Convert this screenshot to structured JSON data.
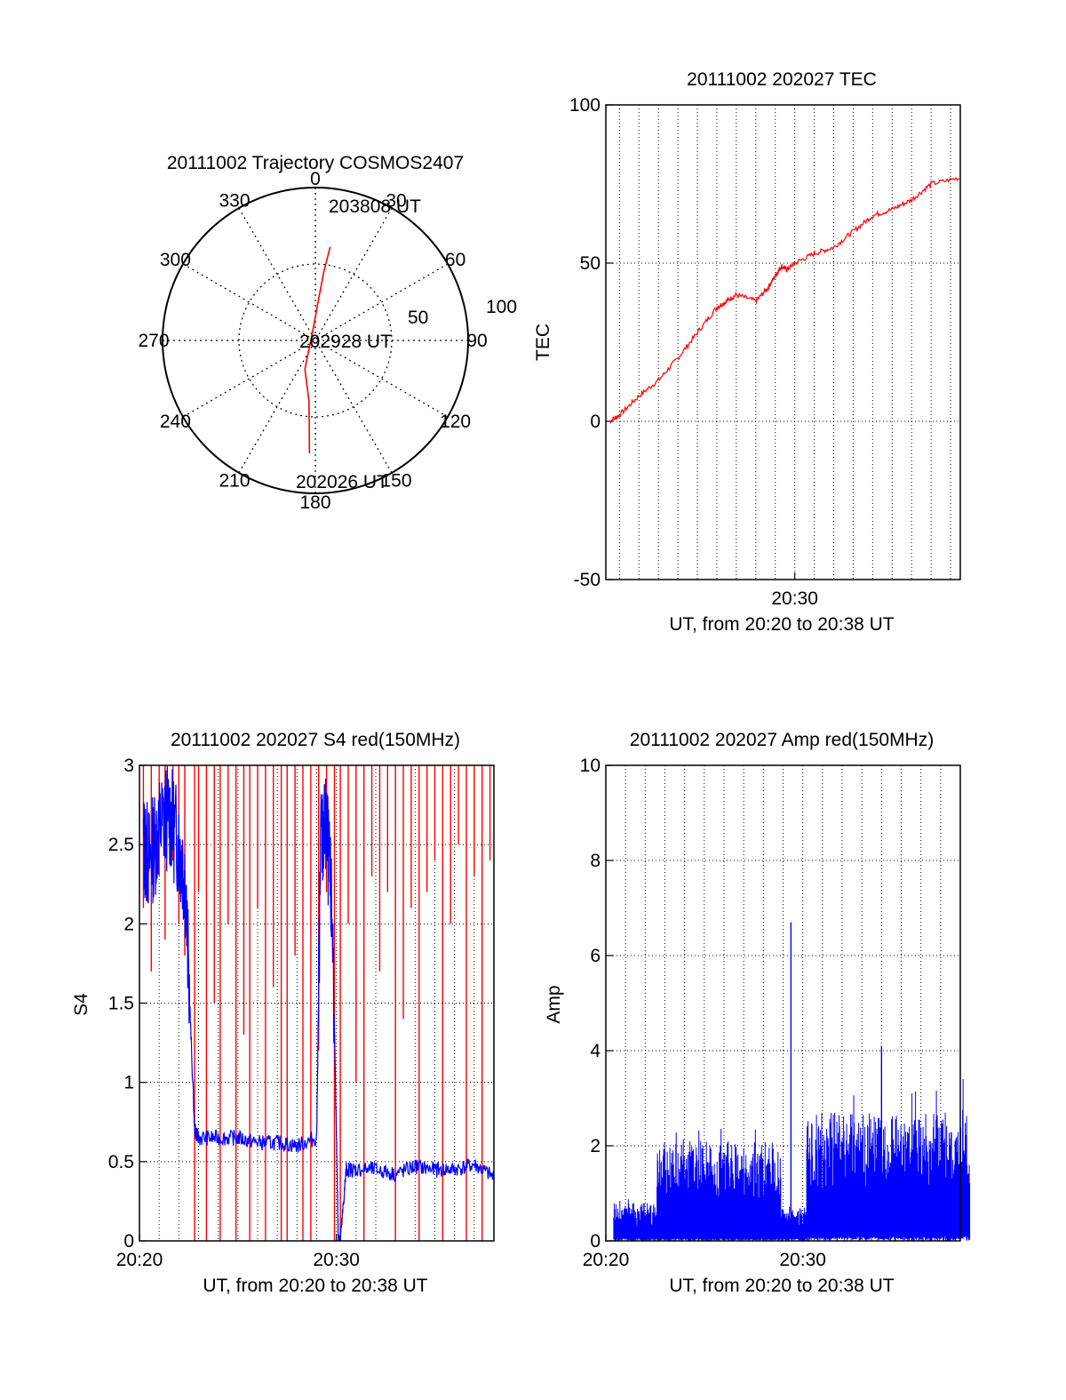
{
  "colors": {
    "red": "#ff0000",
    "blue": "#0000ff",
    "axis": "#000000"
  },
  "chart_data": [
    {
      "id": "trajectory",
      "type": "polar",
      "title": "20111002 Trajectory COSMOS2407",
      "angle_labels": [
        "0",
        "30",
        "60",
        "90",
        "120",
        "150",
        "180",
        "210",
        "240",
        "270",
        "300",
        "330"
      ],
      "radial_labels": [
        "50",
        "100"
      ],
      "radial_range": [
        0,
        100
      ],
      "grid": true,
      "track": {
        "color": "red",
        "points": [
          {
            "az": 9,
            "zen": 62
          },
          {
            "az": 7,
            "zen": 45
          },
          {
            "az": 4,
            "zen": 25
          },
          {
            "az": 350,
            "zen": 8
          },
          {
            "az": 200,
            "zen": 20
          },
          {
            "az": 186,
            "zen": 40
          },
          {
            "az": 184,
            "zen": 57
          },
          {
            "az": 183,
            "zen": 74
          }
        ]
      },
      "annotations": [
        "203808 UT",
        "202928 UT",
        "202026 UT"
      ]
    },
    {
      "id": "tec",
      "type": "line",
      "title": "20111002 202027 TEC",
      "ylabel": "TEC",
      "xlabel": "UT, from 20:20 to 20:38 UT",
      "x_ticks": [
        "20:30"
      ],
      "y_ticks": [
        "100",
        "50",
        "0",
        "-50"
      ],
      "xlim_min": [
        20.3,
        38.5
      ],
      "ylim": [
        -50,
        100
      ],
      "grid": true,
      "series": [
        {
          "color": "red",
          "x": [
            20.5,
            21,
            22,
            23,
            24,
            25,
            26,
            26.5,
            27,
            28,
            28.6,
            29,
            29.3,
            29.6,
            30,
            31,
            32,
            33,
            34,
            35,
            36,
            37,
            38.5
          ],
          "y": [
            0,
            2,
            8,
            13,
            20,
            28,
            36,
            38,
            40,
            38,
            42,
            46,
            49,
            48,
            50,
            53,
            55,
            60,
            65,
            67,
            70,
            75,
            77
          ]
        }
      ]
    },
    {
      "id": "s4",
      "type": "line",
      "title": "20111002 202027 S4 red(150MHz)",
      "ylabel": "S4",
      "xlabel": "UT, from 20:20 to 20:38 UT",
      "x_ticks": [
        "20:20",
        "20:30"
      ],
      "y_ticks": [
        "3",
        "2.5",
        "2",
        "1.5",
        "1",
        "0.5",
        "0"
      ],
      "xlim_min": [
        20,
        38
      ],
      "ylim": [
        0,
        3
      ],
      "grid": true,
      "series": [
        {
          "color": "blue",
          "x": [
            20.2,
            20.5,
            21,
            21.5,
            22,
            22.3,
            22.8,
            23,
            24,
            25,
            26,
            27,
            28,
            29,
            29.2,
            29.5,
            29.8,
            30.1,
            30.2,
            30.5,
            31,
            32,
            33,
            34,
            35,
            36,
            37,
            38
          ],
          "y": [
            2.5,
            2.4,
            2.6,
            2.7,
            2.5,
            2.3,
            0.7,
            0.65,
            0.65,
            0.65,
            0.62,
            0.62,
            0.6,
            0.65,
            2.5,
            2.6,
            2.0,
            0.0,
            0.0,
            0.45,
            0.45,
            0.45,
            0.42,
            0.47,
            0.45,
            0.45,
            0.48,
            0.4
          ]
        },
        {
          "color": "red",
          "x": [
            20.2,
            20.6,
            21.0,
            21.3,
            21.7,
            22.0,
            22.3,
            22.8,
            23.0,
            23.4,
            23.8,
            24.1,
            24.5,
            24.9,
            25.3,
            25.6,
            26.0,
            26.4,
            26.8,
            27.2,
            27.5,
            27.9,
            28.3,
            28.7,
            29.1,
            29.5,
            29.9,
            30.2,
            30.6,
            31.0,
            31.4,
            31.8,
            32.2,
            32.6,
            33.0,
            33.4,
            33.8,
            34.2,
            34.6,
            35.0,
            35.4,
            35.8,
            36.2,
            36.6,
            37.0,
            37.4,
            37.8
          ],
          "y": [
            2.1,
            1.7,
            2.3,
            1.9,
            2.4,
            2.0,
            1.8,
            0.0,
            2.2,
            0.0,
            1.5,
            0.0,
            2.0,
            0.0,
            1.3,
            0.0,
            2.1,
            0.0,
            1.6,
            0.0,
            0.0,
            1.8,
            0.0,
            0.0,
            1.2,
            2.2,
            0.0,
            0.0,
            2.0,
            1.0,
            0.0,
            2.3,
            1.7,
            2.2,
            0.0,
            1.4,
            2.1,
            0.0,
            2.2,
            2.4,
            0.0,
            2.0,
            2.5,
            0.0,
            2.3,
            0.0,
            2.4
          ]
        }
      ]
    },
    {
      "id": "amp",
      "type": "line",
      "title": "20111002 202027 Amp red(150MHz)",
      "ylabel": "Amp",
      "xlabel": "UT, from 20:20 to 20:38 UT",
      "x_ticks": [
        "20:20",
        "20:30"
      ],
      "y_ticks": [
        "10",
        "8",
        "6",
        "4",
        "2",
        "0"
      ],
      "xlim_min": [
        20,
        38
      ],
      "ylim": [
        0,
        10
      ],
      "grid": true,
      "series": [
        {
          "color": "blue",
          "segments": [
            {
              "x0": 20.4,
              "x1": 22.6,
              "ymin": 0.05,
              "ymax": 0.8,
              "peak": 0.9
            },
            {
              "x0": 22.6,
              "x1": 28.9,
              "ymin": 0.05,
              "ymax": 2.1,
              "peak": 2.8
            },
            {
              "x0": 28.9,
              "x1": 30.2,
              "ymin": 0.05,
              "ymax": 0.7,
              "peak": 0.9
            },
            {
              "x0": 30.2,
              "x1": 38.5,
              "ymin": 0.1,
              "ymax": 2.7,
              "peak": 3.9
            }
          ],
          "spikes": [
            {
              "x": 29.4,
              "y": 6.7
            },
            {
              "x": 34.0,
              "y": 4.1
            }
          ]
        }
      ]
    }
  ]
}
